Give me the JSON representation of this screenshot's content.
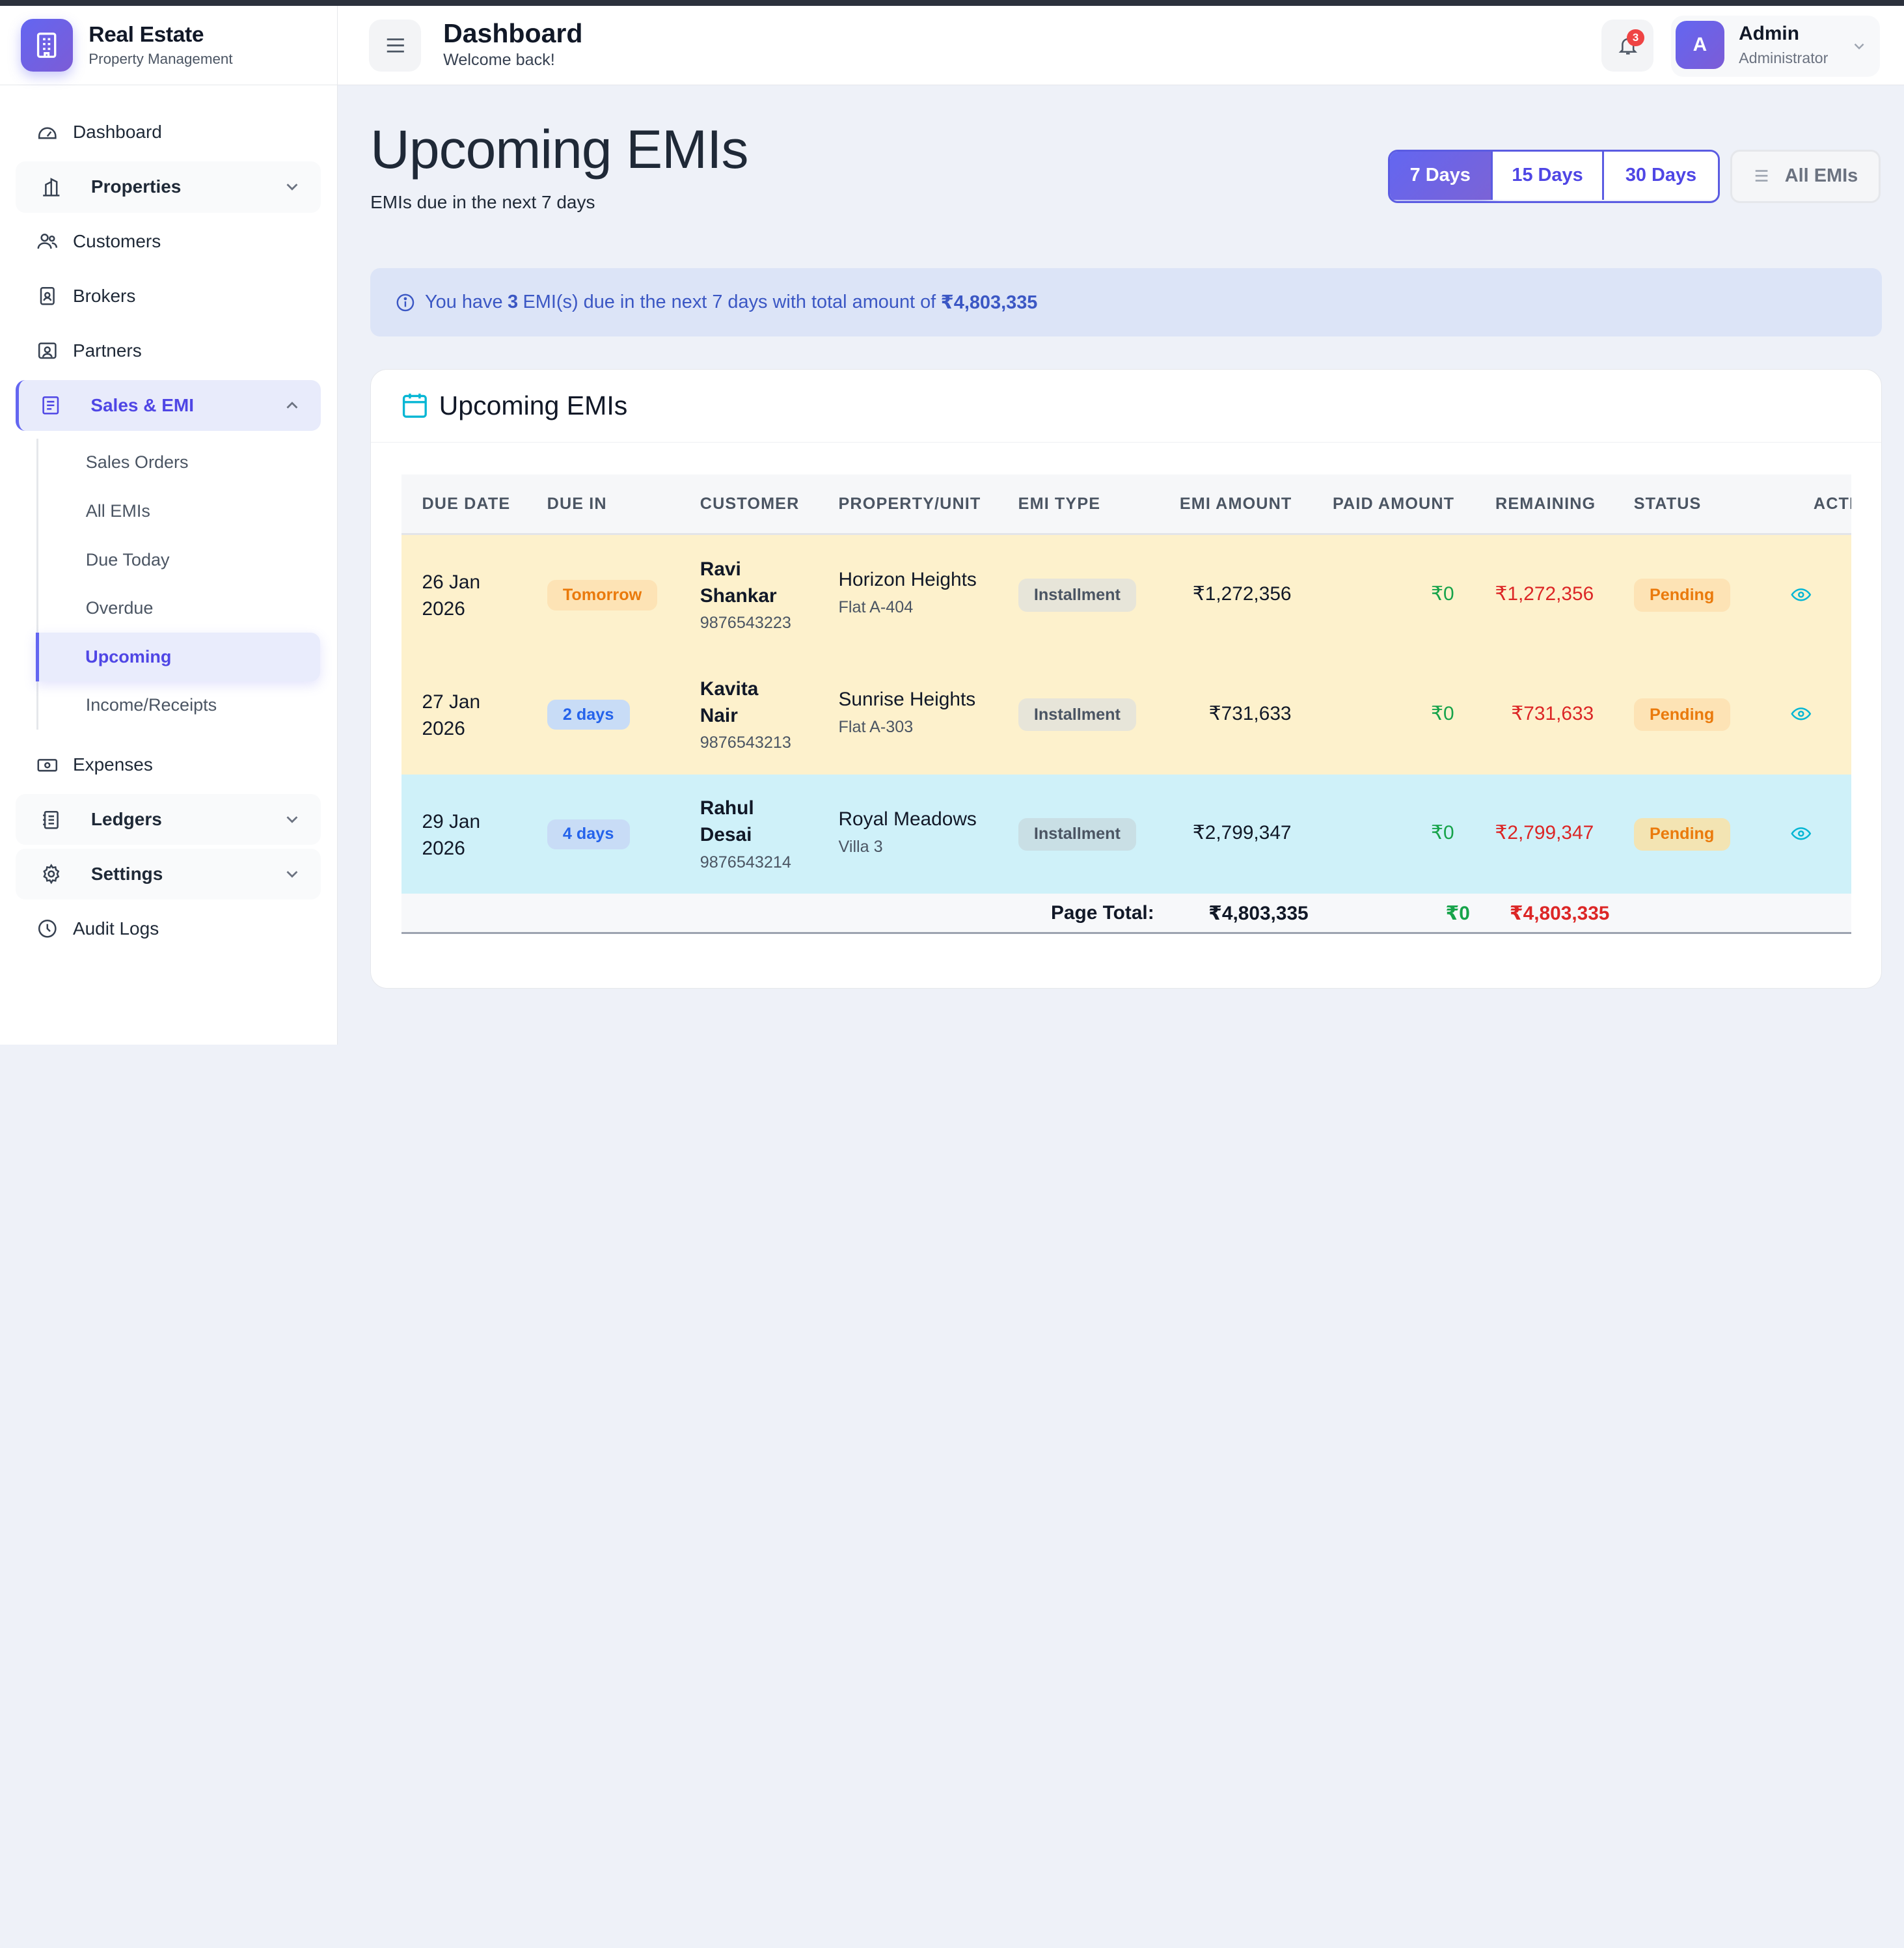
{
  "brand": {
    "title": "Real Estate",
    "subtitle": "Property Management"
  },
  "sidebar": {
    "items": [
      {
        "label": "Dashboard",
        "icon": "gauge-icon"
      },
      {
        "label": "Properties",
        "icon": "building-icon",
        "expandable": true
      },
      {
        "label": "Customers",
        "icon": "users-icon"
      },
      {
        "label": "Brokers",
        "icon": "id-badge-icon"
      },
      {
        "label": "Partners",
        "icon": "contact-card-icon"
      },
      {
        "label": "Sales & EMI",
        "icon": "receipt-icon",
        "expanded": true
      },
      {
        "label": "Expenses",
        "icon": "cash-icon"
      },
      {
        "label": "Ledgers",
        "icon": "ledger-icon",
        "expandable": true
      },
      {
        "label": "Settings",
        "icon": "gear-icon",
        "expandable": true
      },
      {
        "label": "Audit Logs",
        "icon": "clock-icon"
      }
    ],
    "sub_items": [
      "Sales Orders",
      "All EMIs",
      "Due Today",
      "Overdue",
      "Upcoming",
      "Income/Receipts"
    ],
    "active_sub": "Upcoming"
  },
  "header": {
    "title": "Dashboard",
    "subtitle": "Welcome back!",
    "notification_count": "3",
    "user": {
      "initial": "A",
      "name": "Admin",
      "role": "Administrator"
    }
  },
  "page": {
    "title": "Upcoming EMIs",
    "subtitle": "EMIs due in the next 7 days",
    "ranges": [
      "7 Days",
      "15 Days",
      "30 Days"
    ],
    "active_range": "7 Days",
    "all_label": "All EMIs"
  },
  "info": {
    "prefix": "You have",
    "count": "3",
    "middle": "EMI(s) due in the next 7 days with total amount of",
    "total": "₹4,803,335"
  },
  "card": {
    "title": "Upcoming EMIs"
  },
  "table": {
    "headers": [
      "DUE DATE",
      "DUE IN",
      "CUSTOMER",
      "PROPERTY/UNIT",
      "EMI TYPE",
      "EMI AMOUNT",
      "PAID AMOUNT",
      "REMAINING",
      "STATUS",
      "ACTI"
    ],
    "rows": [
      {
        "date_day": "26 Jan",
        "date_year": "2026",
        "due_in": "Tomorrow",
        "customer_first": "Ravi",
        "customer_last": "Shankar",
        "phone": "9876543223",
        "property": "Horizon Heights",
        "unit": "Flat A-404",
        "emi_type": "Installment",
        "emi_amount": "₹1,272,356",
        "paid": "₹0",
        "remaining": "₹1,272,356",
        "status": "Pending"
      },
      {
        "date_day": "27 Jan",
        "date_year": "2026",
        "due_in": "2 days",
        "customer_first": "Kavita",
        "customer_last": "Nair",
        "phone": "9876543213",
        "property": "Sunrise Heights",
        "unit": "Flat A-303",
        "emi_type": "Installment",
        "emi_amount": "₹731,633",
        "paid": "₹0",
        "remaining": "₹731,633",
        "status": "Pending"
      },
      {
        "date_day": "29 Jan",
        "date_year": "2026",
        "due_in": "4 days",
        "customer_first": "Rahul",
        "customer_last": "Desai",
        "phone": "9876543214",
        "property": "Royal Meadows",
        "unit": "Villa 3",
        "emi_type": "Installment",
        "emi_amount": "₹2,799,347",
        "paid": "₹0",
        "remaining": "₹2,799,347",
        "status": "Pending"
      }
    ],
    "totals": {
      "label": "Page Total:",
      "emi_amount": "₹4,803,335",
      "paid": "₹0",
      "remaining": "₹4,803,335"
    }
  },
  "colors": {
    "accent": "#6366f1",
    "warn_row": "#fdf1cc",
    "info_row": "#cff1f9",
    "paid": "#16a34a",
    "remaining": "#dc2626"
  }
}
